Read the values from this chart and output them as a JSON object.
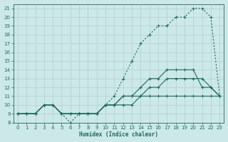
{
  "xlabel": "Humidex (Indice chaleur)",
  "background_color": "#cce8e8",
  "grid_color": "#b0d0d0",
  "line_color": "#1a6b5a",
  "xlim": [
    -0.5,
    23.5
  ],
  "ylim": [
    8,
    21.5
  ],
  "xticks": [
    0,
    1,
    2,
    3,
    4,
    5,
    6,
    7,
    8,
    9,
    10,
    11,
    12,
    13,
    14,
    15,
    16,
    17,
    18,
    19,
    20,
    21,
    22,
    23
  ],
  "yticks": [
    8,
    9,
    10,
    11,
    12,
    13,
    14,
    15,
    16,
    17,
    18,
    19,
    20,
    21
  ],
  "curve1_x": [
    0,
    1,
    2,
    3,
    4,
    5,
    6,
    7,
    8,
    9,
    10,
    11,
    12,
    13,
    14,
    15,
    16,
    17,
    18,
    19,
    20,
    21,
    22,
    23
  ],
  "curve1_y": [
    9,
    9,
    9,
    10,
    10,
    9,
    8,
    9,
    9,
    9,
    10,
    11,
    13,
    15,
    17,
    18,
    19,
    19,
    20,
    20,
    21,
    21,
    20,
    11
  ],
  "curve2_x": [
    0,
    1,
    2,
    3,
    4,
    5,
    6,
    7,
    8,
    9,
    10,
    11,
    12,
    13,
    14,
    15,
    16,
    17,
    18,
    19,
    20,
    21,
    22,
    23
  ],
  "curve2_y": [
    9,
    9,
    9,
    10,
    10,
    9,
    9,
    9,
    9,
    9,
    10,
    10,
    11,
    11,
    12,
    13,
    13,
    14,
    14,
    14,
    14,
    12,
    12,
    11
  ],
  "curve3_x": [
    0,
    1,
    2,
    3,
    4,
    5,
    6,
    7,
    8,
    9,
    10,
    11,
    12,
    13,
    14,
    15,
    16,
    17,
    18,
    19,
    20,
    21,
    22,
    23
  ],
  "curve3_y": [
    9,
    9,
    9,
    10,
    10,
    9,
    9,
    9,
    9,
    9,
    10,
    10,
    11,
    11,
    11,
    12,
    12,
    13,
    13,
    13,
    13,
    13,
    12,
    11
  ],
  "curve4_x": [
    0,
    1,
    2,
    3,
    4,
    5,
    6,
    7,
    8,
    9,
    10,
    11,
    12,
    13,
    14,
    15,
    16,
    17,
    18,
    19,
    20,
    21,
    22,
    23
  ],
  "curve4_y": [
    9,
    9,
    9,
    10,
    10,
    9,
    9,
    9,
    9,
    9,
    10,
    10,
    10,
    10,
    11,
    11,
    11,
    11,
    11,
    11,
    11,
    11,
    11,
    11
  ]
}
